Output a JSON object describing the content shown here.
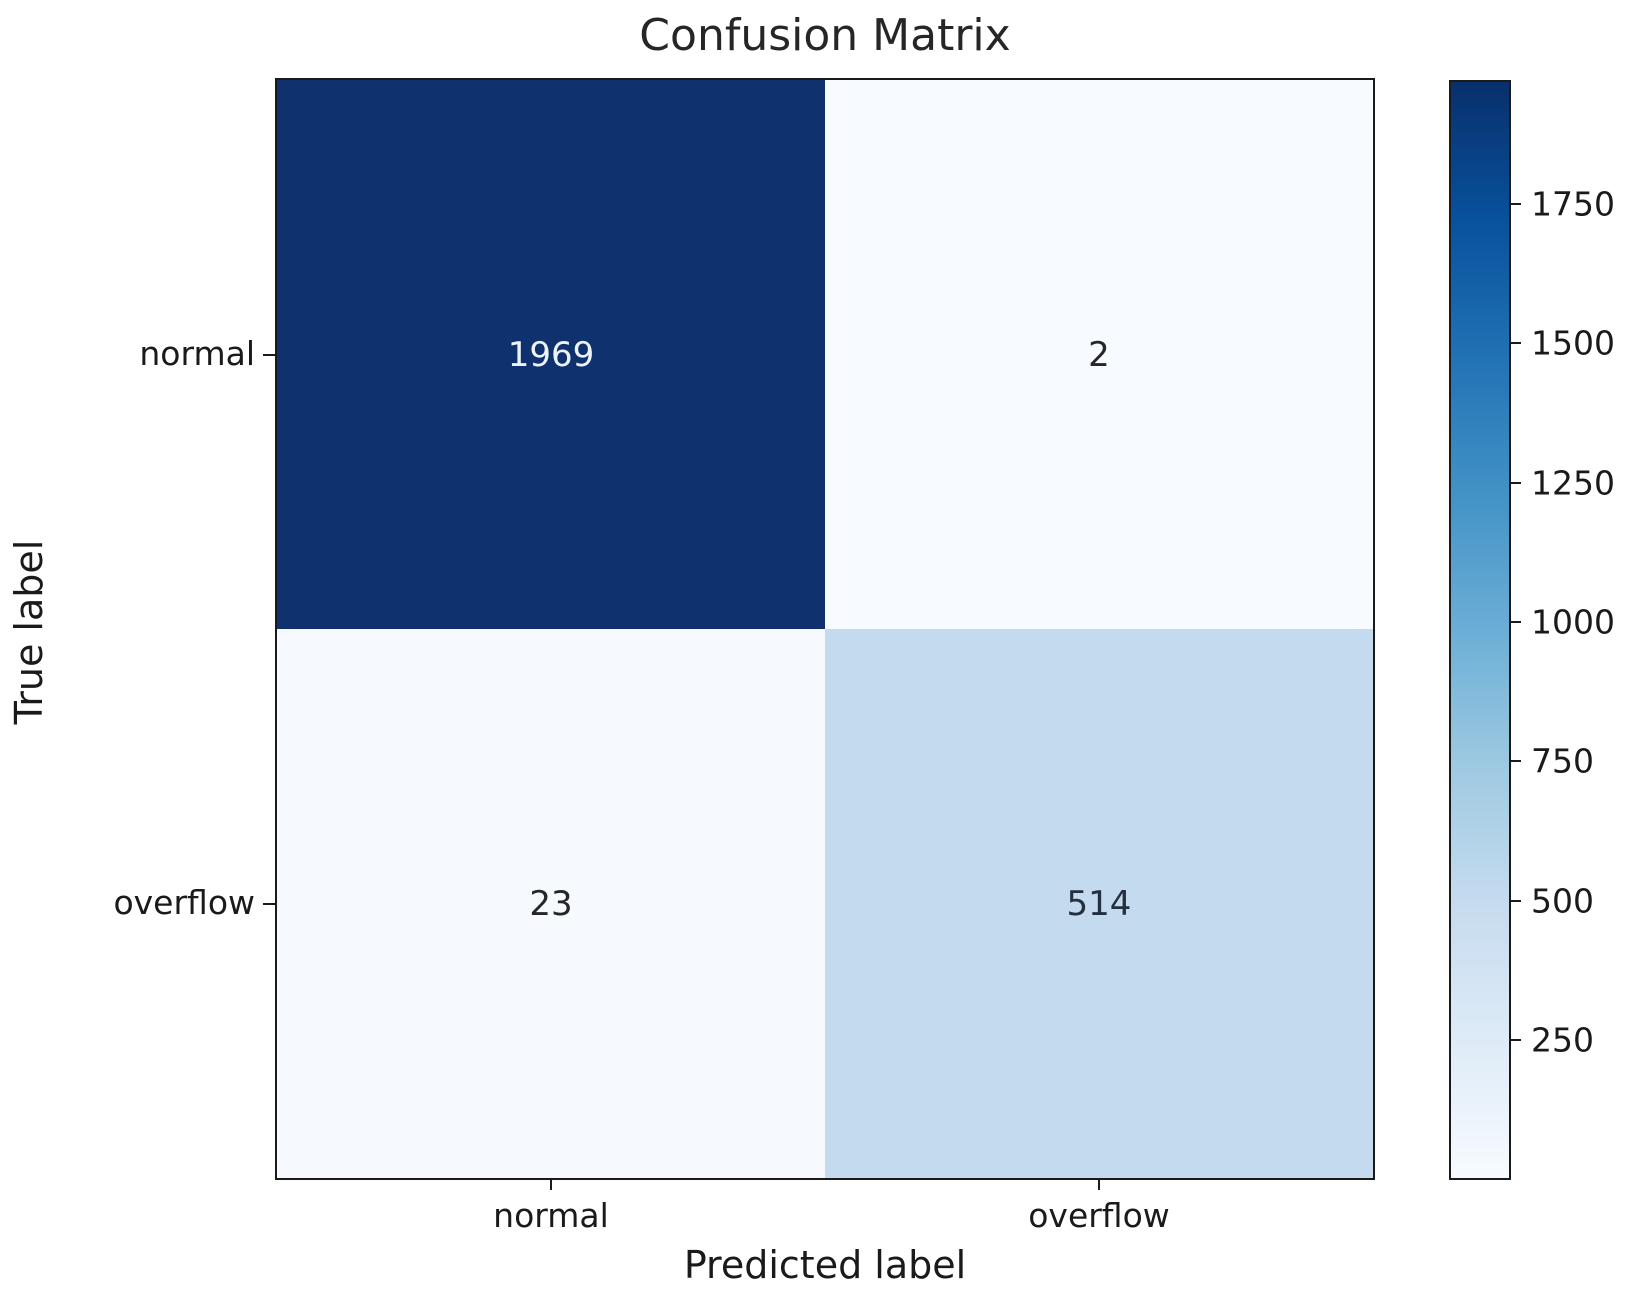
{
  "chart_data": {
    "type": "heatmap",
    "title": "Confusion Matrix",
    "xlabel": "Predicted label",
    "ylabel": "True label",
    "x_categories": [
      "normal",
      "overflow"
    ],
    "y_categories": [
      "normal",
      "overflow"
    ],
    "matrix": [
      [
        1969,
        2
      ],
      [
        23,
        514
      ]
    ],
    "cells": [
      {
        "value": "1969",
        "bg": "#0f316d",
        "fg": "#eef3fa"
      },
      {
        "value": "2",
        "bg": "#f7fbff",
        "fg": "#262626"
      },
      {
        "value": "23",
        "bg": "#f6fafe",
        "fg": "#262626"
      },
      {
        "value": "514",
        "bg": "#c4daee",
        "fg": "#22303f"
      }
    ],
    "value_range": [
      2,
      1969
    ],
    "colorbar_ticks": [
      "250",
      "500",
      "750",
      "1000",
      "1250",
      "1500",
      "1750"
    ],
    "colormap": "Blues",
    "colorbar_gradient_bottom_to_top": [
      "#f7fbff",
      "#deebf7",
      "#c6dbef",
      "#9ecae1",
      "#6baed6",
      "#4292c6",
      "#2171b5",
      "#08519c",
      "#08306b"
    ],
    "legend_position": "right-colorbar",
    "grid": false
  },
  "colors": {
    "background": "#ffffff",
    "spine": "#1a1a1a",
    "text": "#262626",
    "max_cell": "#0f316d",
    "min_cell": "#f7fbff"
  }
}
